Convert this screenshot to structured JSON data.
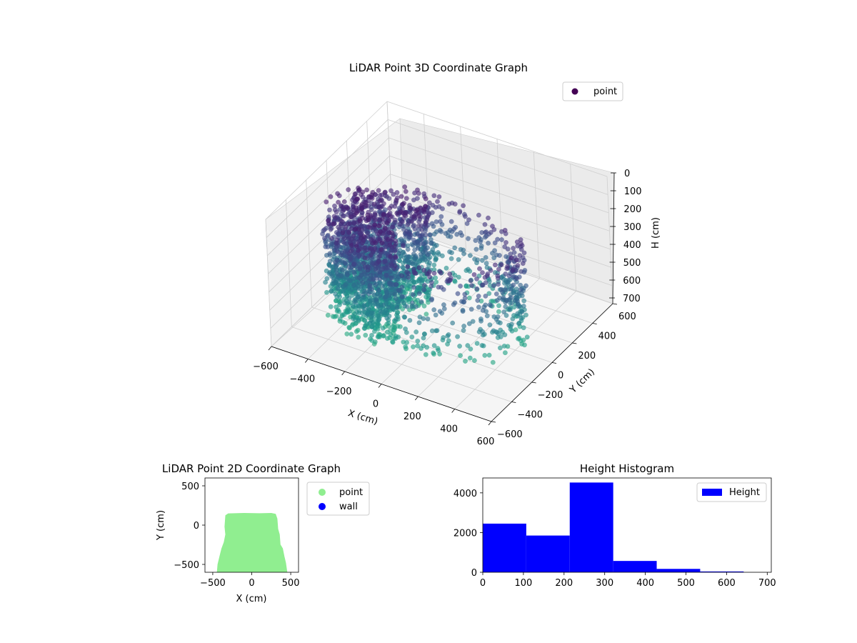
{
  "chart_data": [
    {
      "type": "scatter",
      "title": "LiDAR Point 3D Coordinate Graph",
      "xlabel": "X (cm)",
      "ylabel": "Y (cm)",
      "zlabel": "H (cm)",
      "xlim": [
        -600,
        600
      ],
      "ylim": [
        -600,
        600
      ],
      "zlim": [
        0,
        700
      ],
      "z_inverted": true,
      "x_ticks": [
        "−600",
        "−400",
        "−200",
        "0",
        "200",
        "400",
        "600"
      ],
      "y_ticks": [
        "−600",
        "−400",
        "−200",
        "0",
        "200",
        "400",
        "600"
      ],
      "z_ticks": [
        "0",
        "100",
        "200",
        "300",
        "400",
        "500",
        "600",
        "700"
      ],
      "legend": [
        {
          "label": "point",
          "color": "#440154"
        }
      ],
      "legend_placement": "top-right",
      "colormap": "viridis",
      "grid": true
    },
    {
      "type": "scatter",
      "title": "LiDAR Point 2D Coordinate Graph",
      "xlabel": "X (cm)",
      "ylabel": "Y (cm)",
      "xlim": [
        -600,
        600
      ],
      "ylim": [
        -600,
        600
      ],
      "x_ticks": [
        {
          "value": -500,
          "label": "−500"
        },
        {
          "value": 0,
          "label": "0"
        },
        {
          "value": 500,
          "label": "500"
        }
      ],
      "y_ticks": [
        {
          "value": 500,
          "label": "500"
        },
        {
          "value": 0,
          "label": "0"
        },
        {
          "value": -500,
          "label": "−500"
        }
      ],
      "series": [
        {
          "name": "point",
          "color": "#90ee90"
        },
        {
          "name": "wall",
          "color": "#0000ff"
        }
      ],
      "legend_placement": "outside-right"
    },
    {
      "type": "bar",
      "title": "Height Histogram",
      "xlabel": "",
      "ylabel": "",
      "bin_edges": [
        0,
        107,
        214,
        321,
        428,
        535,
        642
      ],
      "values": [
        2450,
        1850,
        4520,
        570,
        170,
        40
      ],
      "xlim": [
        0,
        710
      ],
      "ylim": [
        0,
        4750
      ],
      "x_ticks": [
        "0",
        "100",
        "200",
        "300",
        "400",
        "500",
        "600",
        "700"
      ],
      "y_ticks": [
        "0",
        "2000",
        "4000"
      ],
      "series": [
        {
          "name": "Height",
          "color": "#0000ff"
        }
      ],
      "legend_placement": "top-right"
    }
  ]
}
